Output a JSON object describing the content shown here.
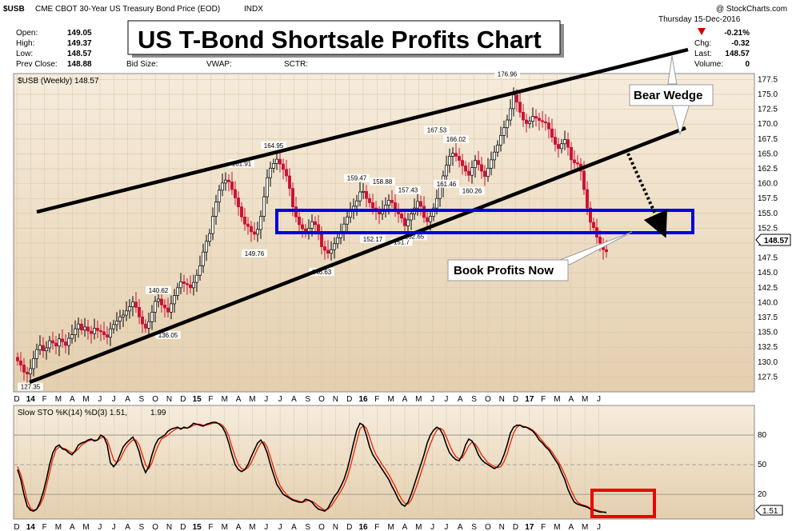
{
  "header": {
    "symbol": "$USB",
    "name": "CME CBOT 30-Year US Treasury Bond Price (EOD)",
    "exchange": "INDX",
    "copyright": "@ StockCharts.com",
    "date": "Thursday  15-Dec-2016",
    "open_label": "Open:",
    "open": "149.05",
    "high_label": "High:",
    "high": "149.37",
    "low_label": "Low:",
    "low": "148.57",
    "prev_label": "Prev Close:",
    "prev": "148.88",
    "bidsize_label": "Bid Size:",
    "vwap_label": "VWAP:",
    "sctr_label": "SCTR:",
    "chg_pct": "-0.21%",
    "chg_label": "Chg:",
    "chg": "-0.32",
    "last_label": "Last:",
    "last": "148.57",
    "volume_label": "Volume:",
    "volume": "0",
    "price_label": "$USB (Weekly) 148.57",
    "last_tag": "148.57",
    "sto_label": "Slow STO %K(14) %D(3) 1.51,",
    "sto_d": "1.99",
    "sto_tag": "1.51"
  },
  "overlay": {
    "title": "US T-Bond Shortsale Profits Chart",
    "bear_wedge": "Bear Wedge",
    "book_profits": "Book Profits Now"
  },
  "colors": {
    "panel_bg": "#ecdcc4",
    "panel_bg_light": "#f6ecdc",
    "up_candle": "#ffffff",
    "down_candle": "#cc1133",
    "k_line": "#000000",
    "d_line": "#ee2200",
    "box_blue": "#0000dd",
    "box_red": "#ee0000",
    "neg_red": "#cc0000"
  },
  "chart_data": [
    {
      "type": "candlestick",
      "title": "$USB (Weekly) 148.57",
      "ylim": [
        125,
        178.5
      ],
      "yticks": [
        127.5,
        130.0,
        132.5,
        135.0,
        137.5,
        140.0,
        142.5,
        145.0,
        147.5,
        150.0,
        152.5,
        155.0,
        157.5,
        160.0,
        162.5,
        165.0,
        167.5,
        170.0,
        172.5,
        175.0,
        177.5
      ],
      "x_month_labels": [
        "D",
        "14",
        "F",
        "M",
        "A",
        "M",
        "J",
        "J",
        "A",
        "S",
        "O",
        "N",
        "D",
        "15",
        "F",
        "M",
        "A",
        "M",
        "J",
        "J",
        "A",
        "S",
        "O",
        "N",
        "D",
        "16",
        "F",
        "M",
        "A",
        "M",
        "J",
        "J",
        "A",
        "S",
        "O",
        "N",
        "D",
        "17",
        "F",
        "M",
        "A",
        "M",
        "J"
      ],
      "annotations": [
        {
          "label": "127.35",
          "week": 4,
          "value": 127.35
        },
        {
          "label": "140.62",
          "week": 44,
          "value": 140.62
        },
        {
          "label": "136.05",
          "week": 47,
          "value": 136.05
        },
        {
          "label": "161.91",
          "week": 70,
          "value": 161.91
        },
        {
          "label": "164.95",
          "week": 80,
          "value": 164.95
        },
        {
          "label": "149.76",
          "week": 74,
          "value": 149.76
        },
        {
          "label": "146.63",
          "week": 95,
          "value": 146.63
        },
        {
          "label": "159.47",
          "week": 106,
          "value": 159.47
        },
        {
          "label": "152.17",
          "week": 111,
          "value": 152.17
        },
        {
          "label": "158.88",
          "week": 114,
          "value": 158.88
        },
        {
          "label": "151.7",
          "week": 120,
          "value": 151.7
        },
        {
          "label": "157.43",
          "week": 122,
          "value": 157.43
        },
        {
          "label": "152.65",
          "week": 124,
          "value": 152.65
        },
        {
          "label": "167.53",
          "week": 131,
          "value": 167.53
        },
        {
          "label": "166.02",
          "week": 137,
          "value": 166.02
        },
        {
          "label": "161.46",
          "week": 134,
          "value": 161.46
        },
        {
          "label": "160.26",
          "week": 142,
          "value": 160.26
        },
        {
          "label": "176.96",
          "week": 153,
          "value": 176.96
        }
      ],
      "close": [
        130.2,
        129.5,
        128.3,
        128.0,
        128.9,
        130.6,
        132.1,
        132.8,
        131.9,
        132.4,
        133.6,
        133.2,
        132.7,
        133.9,
        133.4,
        132.8,
        134.0,
        134.6,
        135.6,
        136.4,
        135.4,
        135.9,
        135.2,
        134.8,
        135.7,
        135.3,
        135.1,
        134.6,
        134.2,
        135.6,
        136.3,
        136.9,
        137.6,
        137.9,
        138.6,
        139.3,
        140.1,
        139.2,
        137.6,
        136.4,
        135.7,
        136.8,
        138.4,
        140.2,
        140.6,
        139.6,
        139.1,
        138.4,
        139.8,
        141.2,
        142.5,
        143.5,
        143.2,
        143.0,
        142.5,
        143.4,
        144.6,
        146.2,
        148.5,
        150.3,
        151.6,
        154.5,
        156.9,
        158.9,
        160.1,
        160.6,
        160.3,
        159.0,
        157.6,
        156.1,
        154.4,
        153.2,
        152.8,
        151.9,
        151.5,
        152.3,
        154.5,
        157.8,
        161.0,
        162.6,
        163.4,
        164.1,
        163.3,
        162.4,
        161.3,
        159.2,
        156.1,
        154.4,
        153.1,
        152.4,
        151.7,
        152.5,
        153.6,
        153.1,
        151.5,
        149.4,
        148.8,
        148.3,
        148.9,
        149.9,
        150.9,
        151.8,
        153.2,
        154.4,
        155.3,
        156.2,
        157.1,
        158.6,
        158.7,
        157.5,
        156.8,
        155.9,
        155.3,
        154.9,
        155.6,
        156.4,
        157.2,
        156.8,
        155.6,
        154.9,
        154.2,
        152.9,
        153.9,
        154.9,
        155.9,
        157.0,
        156.2,
        154.3,
        153.6,
        154.5,
        155.9,
        157.5,
        159.4,
        161.3,
        163.1,
        164.6,
        165.1,
        164.6,
        163.9,
        163.0,
        162.1,
        161.4,
        162.7,
        163.9,
        163.2,
        162.1,
        161.2,
        162.6,
        164.0,
        165.3,
        166.5,
        168.1,
        169.4,
        170.7,
        172.6,
        174.9,
        173.7,
        172.0,
        170.7,
        170.1,
        170.5,
        171.3,
        171.0,
        170.6,
        170.4,
        170.2,
        169.2,
        167.8,
        166.6,
        165.9,
        166.7,
        167.4,
        166.1,
        164.0,
        163.5,
        163.3,
        162.1,
        159.0,
        155.9,
        153.5,
        152.6,
        151.0,
        150.0,
        148.9,
        148.57
      ],
      "k": [
        45,
        35,
        20,
        8,
        4,
        3,
        5,
        12,
        22,
        35,
        50,
        62,
        68,
        70,
        66,
        65,
        62,
        60,
        64,
        70,
        72,
        73,
        75,
        76,
        74,
        75,
        80,
        78,
        70,
        52,
        48,
        52,
        60,
        68,
        72,
        75,
        78,
        72,
        63,
        50,
        42,
        48,
        60,
        70,
        76,
        78,
        80,
        84,
        86,
        87,
        88,
        86,
        88,
        87,
        89,
        92,
        91,
        90,
        89,
        91,
        92,
        93,
        93,
        91,
        88,
        82,
        72,
        60,
        50,
        45,
        43,
        45,
        50,
        58,
        65,
        72,
        75,
        70,
        62,
        50,
        40,
        30,
        25,
        20,
        18,
        16,
        14,
        13,
        12,
        12,
        15,
        14,
        12,
        8,
        5,
        4,
        3,
        6,
        12,
        18,
        22,
        28,
        35,
        45,
        58,
        72,
        85,
        92,
        90,
        80,
        68,
        60,
        55,
        50,
        45,
        40,
        35,
        28,
        22,
        15,
        10,
        8,
        12,
        20,
        30,
        40,
        50,
        60,
        72,
        80,
        85,
        88,
        86,
        80,
        70,
        62,
        58,
        55,
        54,
        60,
        70,
        76,
        74,
        68,
        60,
        55,
        52,
        50,
        48,
        46,
        48,
        52,
        60,
        70,
        82,
        88,
        90,
        90,
        88,
        88,
        86,
        84,
        80,
        75,
        72,
        68,
        65,
        60,
        55,
        50,
        42,
        35,
        25,
        18,
        12,
        10,
        9,
        8,
        7,
        5,
        4,
        3,
        2,
        2,
        1.51
      ],
      "d": [
        48,
        40,
        28,
        14,
        6,
        4,
        5,
        9,
        16,
        28,
        42,
        56,
        65,
        68,
        67,
        66,
        64,
        62,
        63,
        66,
        70,
        72,
        74,
        75,
        75,
        75,
        77,
        78,
        75,
        65,
        55,
        52,
        55,
        62,
        68,
        72,
        75,
        75,
        70,
        60,
        50,
        46,
        52,
        62,
        70,
        76,
        78,
        80,
        83,
        85,
        87,
        87,
        87,
        87,
        88,
        90,
        91,
        91,
        90,
        90,
        91,
        92,
        92,
        92,
        90,
        86,
        79,
        68,
        58,
        50,
        46,
        45,
        47,
        52,
        59,
        66,
        72,
        73,
        68,
        58,
        47,
        37,
        29,
        24,
        20,
        17,
        15,
        14,
        13,
        12,
        13,
        14,
        13,
        11,
        8,
        6,
        4,
        5,
        8,
        13,
        18,
        23,
        29,
        37,
        48,
        61,
        74,
        86,
        90,
        87,
        78,
        68,
        60,
        55,
        50,
        45,
        40,
        34,
        28,
        21,
        15,
        11,
        10,
        14,
        22,
        31,
        41,
        51,
        62,
        71,
        79,
        85,
        87,
        85,
        78,
        70,
        63,
        58,
        56,
        57,
        63,
        69,
        73,
        71,
        66,
        60,
        56,
        52,
        50,
        48,
        47,
        48,
        53,
        61,
        72,
        82,
        88,
        90,
        89,
        88,
        87,
        85,
        82,
        78,
        74,
        70,
        67,
        63,
        58,
        53,
        47,
        40,
        32,
        24,
        17,
        12,
        10,
        9,
        8,
        6,
        5,
        4,
        3,
        2,
        1.99
      ],
      "month_tick_week": 4.33
    },
    {
      "type": "line",
      "title": "Slow STO %K(14) %D(3) 1.51, 1.99",
      "ylim": [
        -5,
        110
      ],
      "yticks": [
        20,
        50,
        80
      ],
      "series": [
        {
          "name": "%K(14)",
          "ref": "k"
        },
        {
          "name": "%D(3)",
          "ref": "d"
        }
      ]
    }
  ]
}
